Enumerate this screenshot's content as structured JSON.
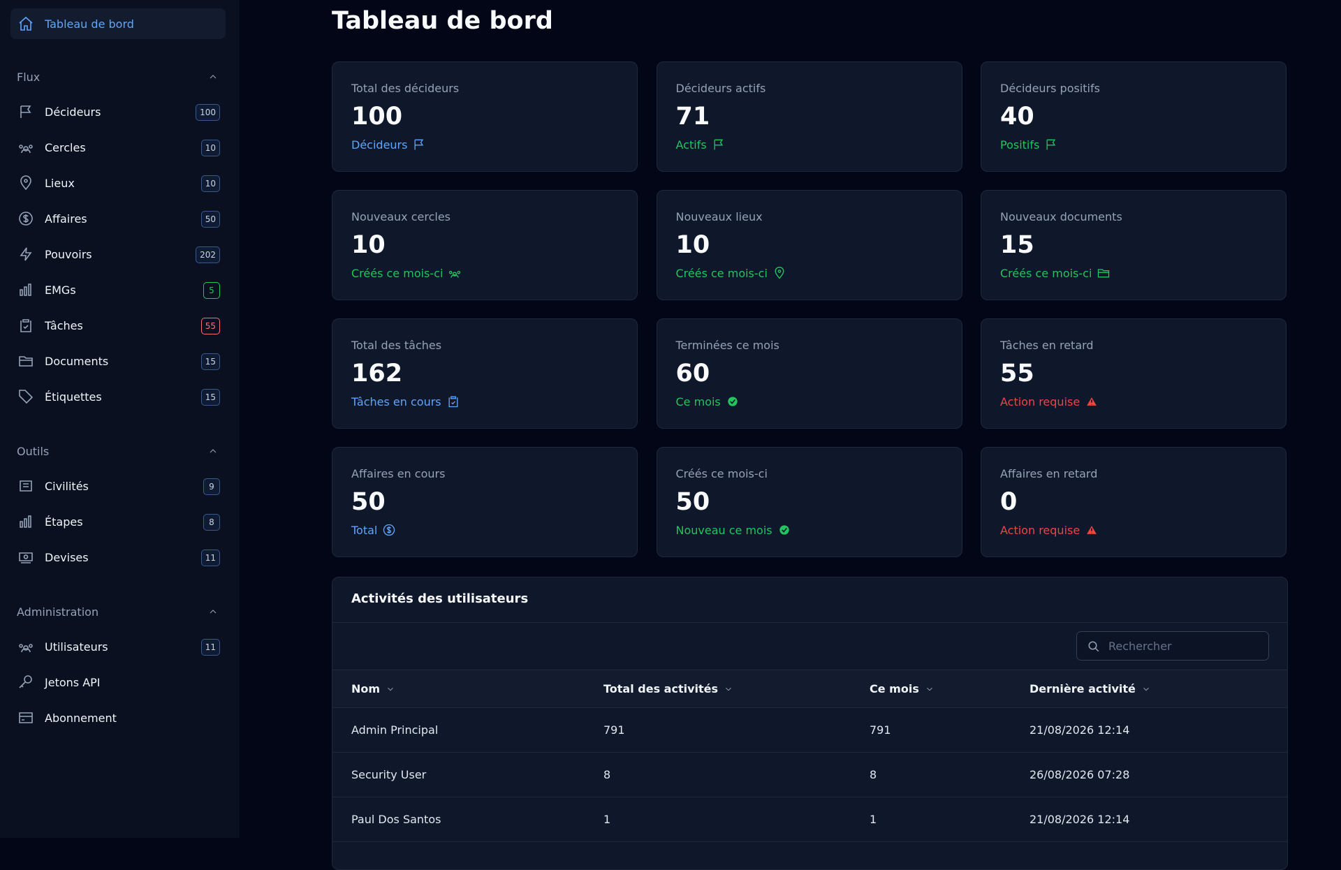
{
  "sidebar": {
    "active": "Tableau de bord",
    "sections": [
      {
        "title": "Flux",
        "items": [
          {
            "label": "Décideurs",
            "badge": 100
          },
          {
            "label": "Cercles",
            "badge": 10
          },
          {
            "label": "Lieux",
            "badge": 10
          },
          {
            "label": "Affaires",
            "badge": 50
          },
          {
            "label": "Pouvoirs",
            "badge": 202
          },
          {
            "label": "EMGs",
            "badge": 5,
            "badge_color": "#22c55e"
          },
          {
            "label": "Tâches",
            "badge": 55,
            "badge_color": "#f87171"
          },
          {
            "label": "Documents",
            "badge": 15
          },
          {
            "label": "Étiquettes",
            "badge": 15
          }
        ]
      },
      {
        "title": "Outils",
        "items": [
          {
            "label": "Civilités",
            "badge": 9
          },
          {
            "label": "Étapes",
            "badge": 8
          },
          {
            "label": "Devises",
            "badge": 11
          }
        ]
      },
      {
        "title": "Administration",
        "items": [
          {
            "label": "Utilisateurs",
            "badge": 11
          },
          {
            "label": "Jetons API"
          },
          {
            "label": "Abonnement"
          }
        ]
      }
    ]
  },
  "header": {
    "title": "Tableau de bord"
  },
  "cards": [
    {
      "label": "Total des décideurs",
      "value": 100,
      "link": "Décideurs",
      "color": "#60a5fa",
      "icon": "flag"
    },
    {
      "label": "Décideurs actifs",
      "value": 71,
      "link": "Actifs",
      "color": "#22c55e",
      "icon": "flag"
    },
    {
      "label": "Décideurs positifs",
      "value": 40,
      "link": "Positifs",
      "color": "#22c55e",
      "icon": "flag"
    },
    {
      "label": "Nouveaux cercles",
      "value": 10,
      "link": "Créés ce mois-ci",
      "color": "#22c55e",
      "icon": "people"
    },
    {
      "label": "Nouveaux lieux",
      "value": 10,
      "link": "Créés ce mois-ci",
      "color": "#22c55e",
      "icon": "pin"
    },
    {
      "label": "Nouveaux documents",
      "value": 15,
      "link": "Créés ce mois-ci",
      "color": "#22c55e",
      "icon": "folder"
    },
    {
      "label": "Total des tâches",
      "value": 162,
      "link": "Tâches en cours",
      "color": "#60a5fa",
      "icon": "clipboard"
    },
    {
      "label": "Terminées ce mois",
      "value": 60,
      "link": "Ce mois",
      "color": "#22c55e",
      "icon": "check"
    },
    {
      "label": "Tâches en retard",
      "value": 55,
      "link": "Action requise",
      "color": "#ef4444",
      "icon": "warning"
    },
    {
      "label": "Affaires en cours",
      "value": 50,
      "link": "Total",
      "color": "#60a5fa",
      "icon": "dollar"
    },
    {
      "label": "Créés ce mois-ci",
      "value": 50,
      "link": "Nouveau ce mois",
      "color": "#22c55e",
      "icon": "check"
    },
    {
      "label": "Affaires en retard",
      "value": 0,
      "link": "Action requise",
      "color": "#ef4444",
      "icon": "warning"
    }
  ],
  "table": {
    "title": "Activités des utilisateurs",
    "search_placeholder": "Rechercher",
    "columns": [
      "Nom",
      "Total des activités",
      "Ce mois",
      "Dernière activité"
    ],
    "rows": [
      [
        "Admin Principal",
        791,
        791,
        "21/08/2026 12:14"
      ],
      [
        "Security User",
        8,
        8,
        "26/08/2026 07:28"
      ],
      [
        "Paul Dos Santos",
        1,
        1,
        "21/08/2026 12:14"
      ]
    ]
  }
}
